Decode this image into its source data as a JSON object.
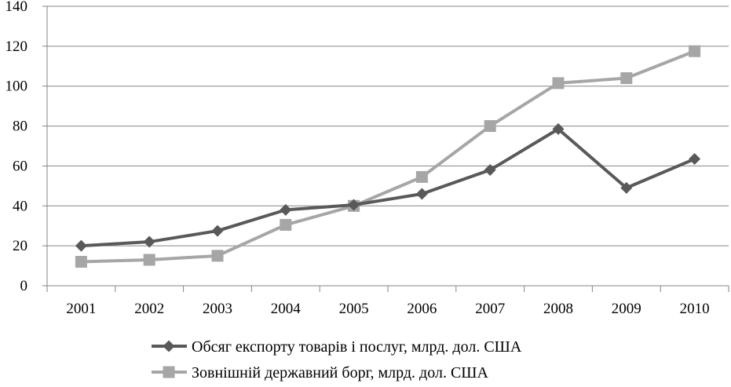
{
  "chart_data": {
    "type": "line",
    "title": "",
    "xlabel": "",
    "ylabel": "",
    "categories": [
      "2001",
      "2002",
      "2003",
      "2004",
      "2005",
      "2006",
      "2007",
      "2008",
      "2009",
      "2010"
    ],
    "ylim": [
      0,
      140
    ],
    "yticks": [
      0,
      20,
      40,
      60,
      80,
      100,
      120,
      140
    ],
    "grid": "horizontal",
    "legend_position": "bottom",
    "series": [
      {
        "name": "Обсяг експорту товарів і послуг, млрд. дол. США",
        "values": [
          20,
          22,
          27.5,
          38,
          40.5,
          46,
          58,
          78.5,
          49,
          63.5
        ],
        "color": "#595959",
        "marker": "diamond"
      },
      {
        "name": "Зовнішній державний борг, млрд. дол. США",
        "values": [
          12,
          13,
          15,
          30.5,
          40,
          54.5,
          80,
          101.5,
          104,
          117.5
        ],
        "color": "#a6a6a6",
        "marker": "square"
      }
    ]
  }
}
